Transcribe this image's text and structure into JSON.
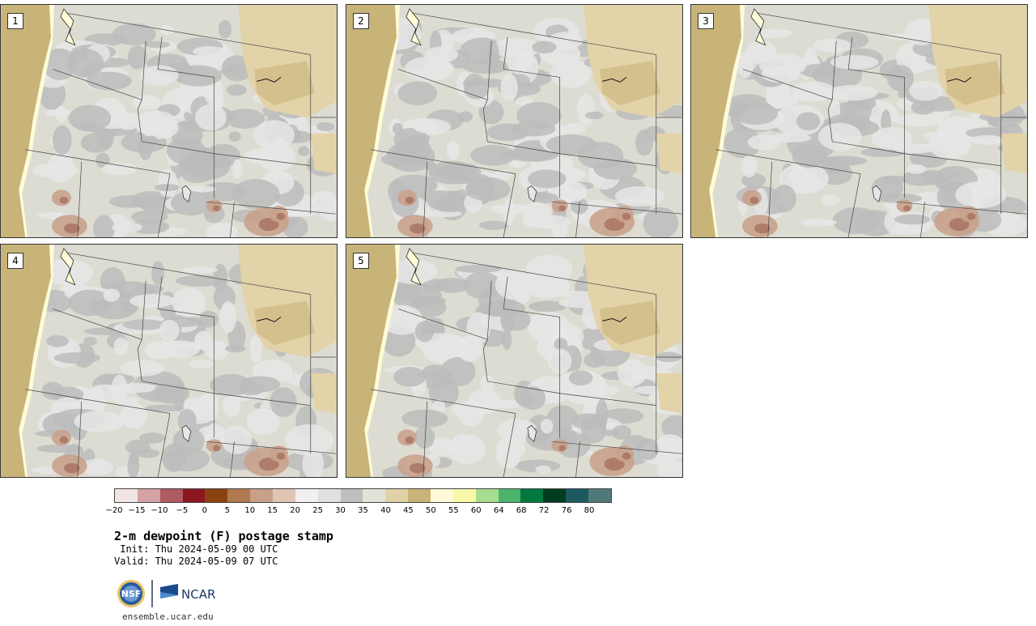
{
  "title": "2-m dewpoint (F) postage stamp",
  "init": " Init: Thu 2024-05-09 00 UTC",
  "valid": "Valid: Thu 2024-05-09 07 UTC",
  "footer_url": "ensemble.ucar.edu",
  "logos": {
    "nsf": "NSF",
    "ncar": "NCAR"
  },
  "panels": [
    {
      "label": "1"
    },
    {
      "label": "2"
    },
    {
      "label": "3"
    },
    {
      "label": "4"
    },
    {
      "label": "5"
    }
  ],
  "colorbar": {
    "colors": [
      "#f0e4e4",
      "#d4a2a4",
      "#b05a62",
      "#8c1620",
      "#8a4210",
      "#b07850",
      "#c8a088",
      "#e0c4b4",
      "#f0f0f0",
      "#e0e0e0",
      "#bfbfbf",
      "#e3e2d6",
      "#e1d1a7",
      "#c8b478",
      "#fffbd8",
      "#f8f8a8",
      "#a8dc90",
      "#4cb46c",
      "#007840",
      "#003c20",
      "#1c5a60",
      "#507a7a"
    ],
    "tick_labels": [
      "−20",
      "−15",
      "−10",
      "−5",
      "0",
      "5",
      "10",
      "15",
      "20",
      "25",
      "30",
      "35",
      "40",
      "45",
      "50",
      "55",
      "60",
      "64",
      "68",
      "72",
      "76",
      "80"
    ]
  },
  "map_colors": {
    "ocean": "#c8b478",
    "land_base": "#dcdcd2",
    "gray_dark": "#bcbcbc",
    "gray_light": "#e6e6e6",
    "tan": "#e2d3a8",
    "tan_dark": "#d4c08c",
    "brown": "#c9a28c",
    "brown_dark": "#a67060",
    "border": "#444444"
  }
}
